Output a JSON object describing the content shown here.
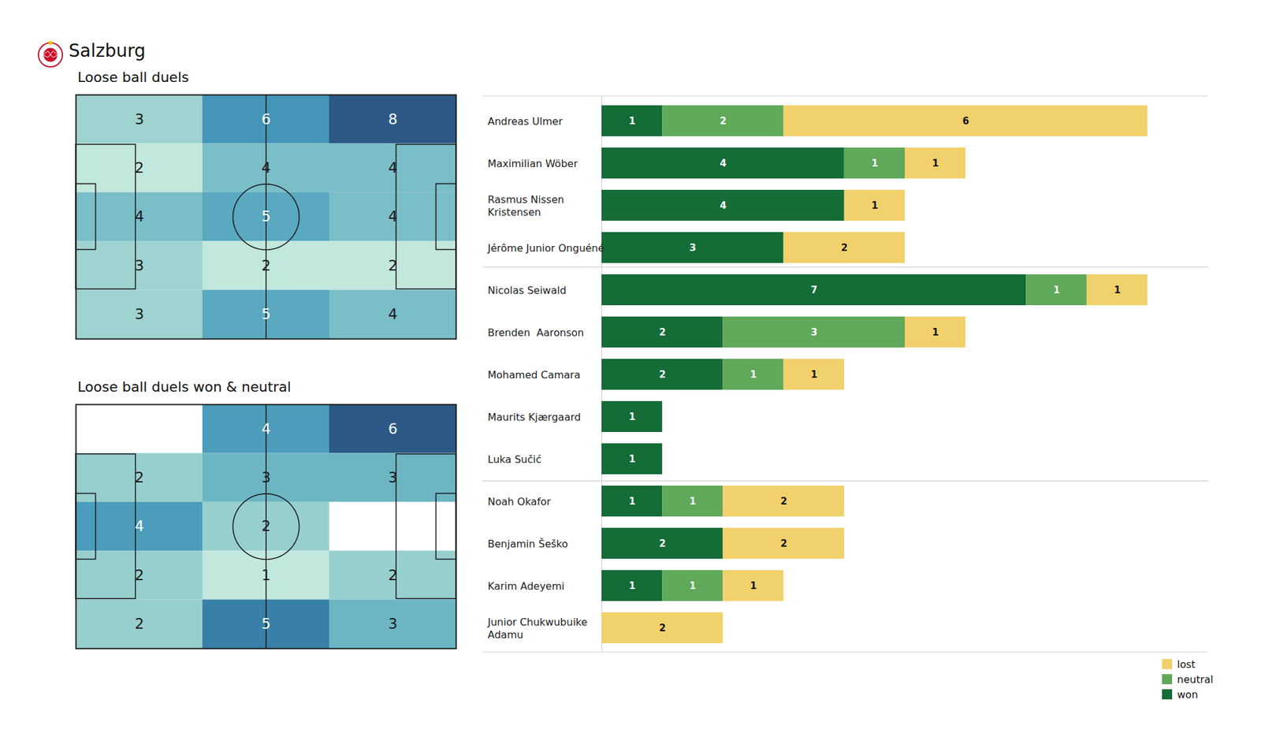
{
  "title": "Salzburg",
  "chart_data": [
    {
      "type": "heatmap",
      "title": "Loose ball duels",
      "data_labels": true,
      "cells": [
        [
          3,
          6,
          8
        ],
        [
          2,
          4,
          4
        ],
        [
          4,
          5,
          4
        ],
        [
          3,
          2,
          2
        ],
        [
          3,
          5,
          4
        ]
      ]
    },
    {
      "type": "heatmap",
      "title": "Loose ball duels won & neutral",
      "data_labels": true,
      "cells": [
        [
          null,
          4,
          6
        ],
        [
          2,
          3,
          3
        ],
        [
          4,
          2,
          null
        ],
        [
          2,
          1,
          2
        ],
        [
          2,
          5,
          3
        ]
      ]
    },
    {
      "type": "bar",
      "orientation": "horizontal",
      "stacked": true,
      "data_labels": true,
      "tick_labels": "y",
      "legend": "lower right",
      "categories": [
        "Andreas Ulmer",
        "Maximilian Wöber",
        "Rasmus Nissen\nKristensen",
        "Jérôme Junior Onguéné",
        "Nicolas Seiwald",
        "Brenden  Aaronson",
        "Mohamed Camara",
        "Maurits Kjærgaard",
        "Luka Sučić",
        "Noah Okafor",
        "Benjamin Šeško",
        "Karim Adeyemi",
        "Junior Chukwubuike\nAdamu"
      ],
      "series": [
        {
          "name": "won",
          "color": "#146c36",
          "values": [
            1,
            4,
            4,
            3,
            7,
            2,
            2,
            1,
            1,
            1,
            2,
            1,
            null
          ]
        },
        {
          "name": "neutral",
          "color": "#60a85a",
          "values": [
            2,
            1,
            null,
            null,
            1,
            3,
            1,
            null,
            null,
            1,
            null,
            1,
            null
          ]
        },
        {
          "name": "lost",
          "color": "#f1d16b",
          "values": [
            6,
            1,
            1,
            2,
            1,
            1,
            1,
            null,
            null,
            2,
            2,
            1,
            2
          ]
        }
      ],
      "xlim": [
        0,
        10
      ]
    }
  ]
}
